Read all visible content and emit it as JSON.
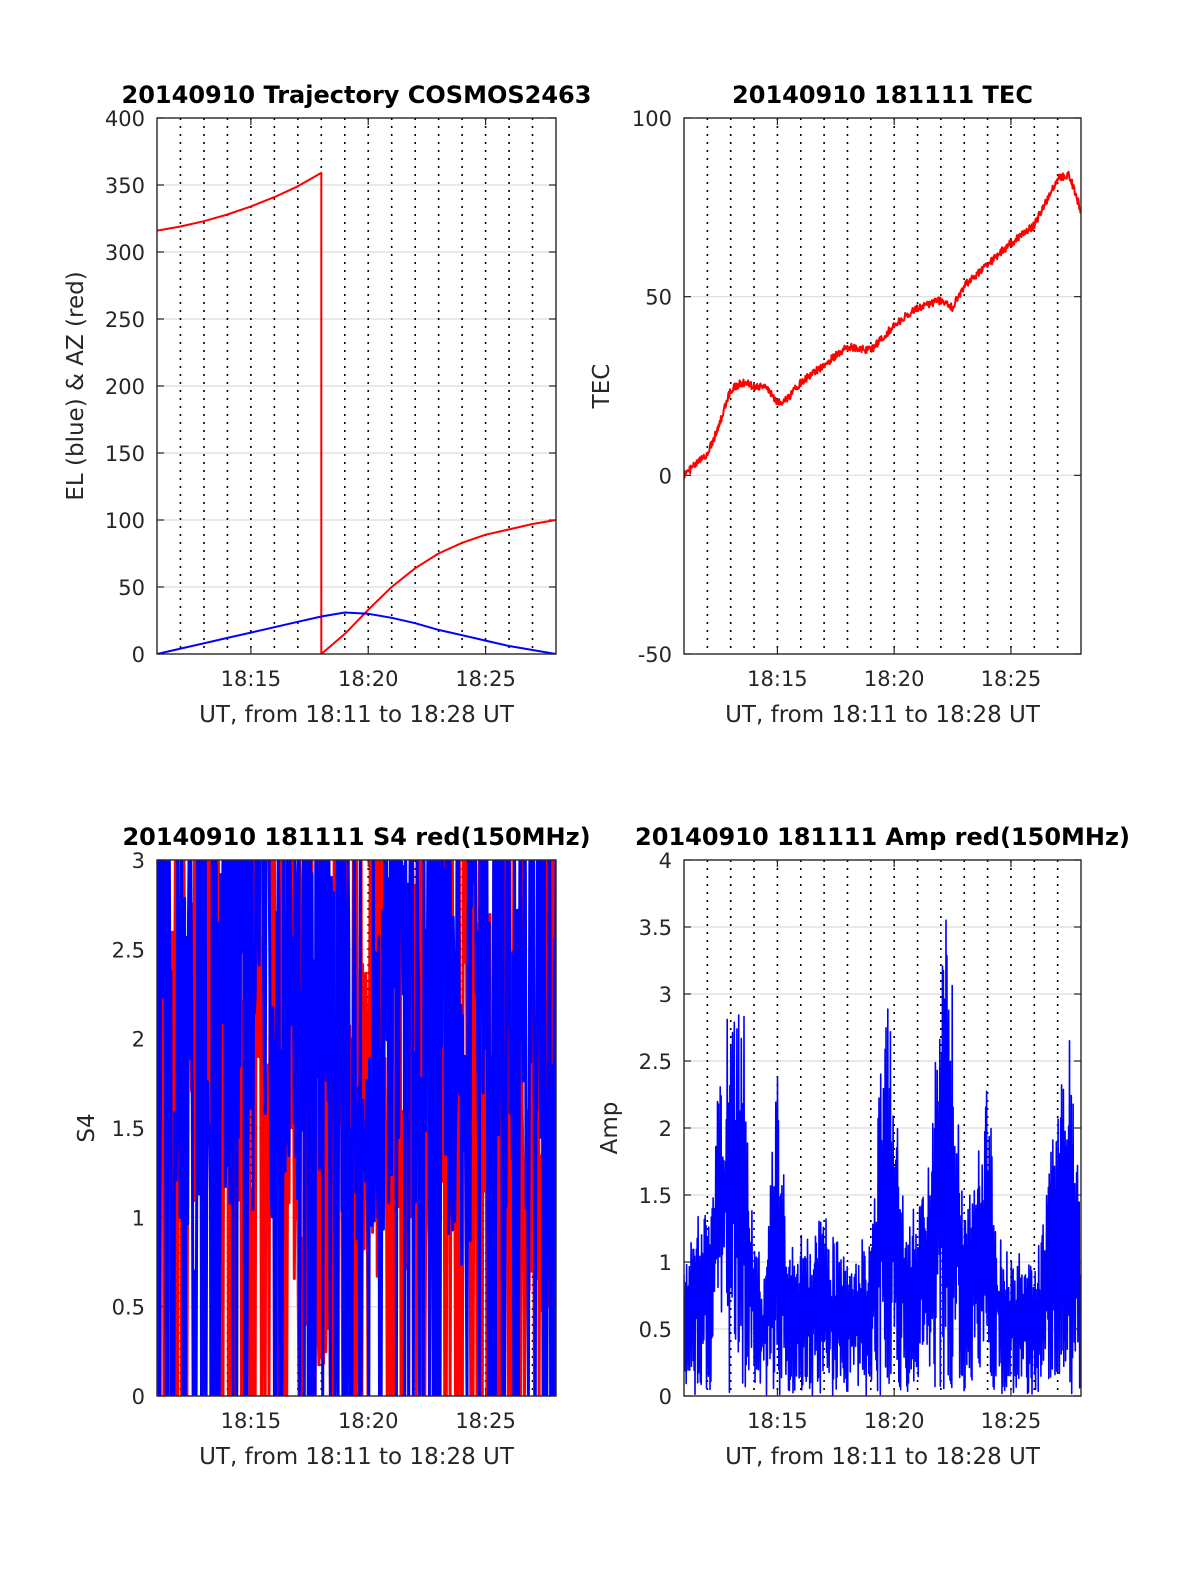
{
  "figure": {
    "background": "#ffffff"
  },
  "chart_data": [
    {
      "id": "trajectory",
      "type": "line",
      "title": "20140910 Trajectory COSMOS2463",
      "xlabel": "UT, from 18:11 to 18:28 UT",
      "ylabel": "EL (blue) & AZ (red)",
      "xlim": [
        "18:11",
        "18:28"
      ],
      "ylim": [
        0,
        400
      ],
      "x_tick_labels": [
        "18:15",
        "18:20",
        "18:25"
      ],
      "y_tick_labels": [
        "0",
        "50",
        "100",
        "150",
        "200",
        "250",
        "300",
        "350",
        "400"
      ],
      "grid": true,
      "series": [
        {
          "name": "AZ",
          "color": "#ff0000",
          "x": [
            "18:11",
            "18:12",
            "18:13",
            "18:14",
            "18:15",
            "18:16",
            "18:17",
            "18:18",
            "18:18",
            "18:19",
            "18:20",
            "18:21",
            "18:22",
            "18:23",
            "18:24",
            "18:25",
            "18:26",
            "18:27",
            "18:28"
          ],
          "y": [
            316,
            319,
            323,
            328,
            334,
            341,
            349,
            359,
            0,
            15,
            33,
            50,
            64,
            75,
            83,
            89,
            93,
            97,
            100
          ]
        },
        {
          "name": "EL",
          "color": "#0000ff",
          "x": [
            "18:11",
            "18:12",
            "18:13",
            "18:14",
            "18:15",
            "18:16",
            "18:17",
            "18:18",
            "18:19",
            "18:20",
            "18:21",
            "18:22",
            "18:23",
            "18:24",
            "18:25",
            "18:26",
            "18:27",
            "18:28"
          ],
          "y": [
            0,
            4,
            8,
            12,
            16,
            20,
            24,
            28,
            31,
            30,
            27,
            23,
            18,
            14,
            10,
            6,
            3,
            0
          ]
        }
      ]
    },
    {
      "id": "tec",
      "type": "line",
      "title": "20140910 181111 TEC",
      "xlabel": "UT, from 18:11 to 18:28 UT",
      "ylabel": "TEC",
      "xlim": [
        "18:11",
        "18:28"
      ],
      "ylim": [
        -50,
        100
      ],
      "x_tick_labels": [
        "18:15",
        "18:20",
        "18:25"
      ],
      "y_tick_labels": [
        "-50",
        "0",
        "50",
        "100"
      ],
      "grid": true,
      "series": [
        {
          "color": "#ff0000",
          "x": [
            "18:11",
            "18:11:30",
            "18:12",
            "18:12:30",
            "18:13",
            "18:13:30",
            "18:14",
            "18:14:30",
            "18:15",
            "18:15:30",
            "18:16",
            "18:17",
            "18:18",
            "18:19",
            "18:20",
            "18:21",
            "18:22",
            "18:22:30",
            "18:23",
            "18:24",
            "18:25",
            "18:26",
            "18:27",
            "18:27:30",
            "18:28"
          ],
          "y": [
            0,
            3,
            6,
            14,
            24,
            26,
            25,
            25,
            20,
            22,
            26,
            31,
            36,
            35,
            42,
            47,
            49,
            47,
            53,
            59,
            65,
            70,
            83,
            84,
            74
          ]
        }
      ]
    },
    {
      "id": "s4",
      "type": "line",
      "title": "20140910 181111 S4 red(150MHz)",
      "xlabel": "UT, from 18:11 to 18:28 UT",
      "ylabel": "S4",
      "xlim": [
        "18:11",
        "18:28"
      ],
      "ylim": [
        0,
        3
      ],
      "x_tick_labels": [
        "18:15",
        "18:20",
        "18:25"
      ],
      "y_tick_labels": [
        "0",
        "0.5",
        "1",
        "1.5",
        "2",
        "2.5",
        "3"
      ],
      "grid": true,
      "series": [
        {
          "color": "#ff0000",
          "x": [
            "18:11",
            "18:12",
            "18:13",
            "18:14",
            "18:15",
            "18:16",
            "18:17",
            "18:18",
            "18:19",
            "18:20",
            "18:21",
            "18:22",
            "18:23",
            "18:24",
            "18:25",
            "18:26",
            "18:27",
            "18:28"
          ],
          "y": [
            2.5,
            2.2,
            2.8,
            1.9,
            2.6,
            2.0,
            1.6,
            0.3,
            2.3,
            2.1,
            1.5,
            2.4,
            2.0,
            2.2,
            2.5,
            1.7,
            1.2,
            0.9
          ]
        },
        {
          "color": "#0000ff",
          "x": [
            "18:11",
            "18:12",
            "18:13",
            "18:14",
            "18:15",
            "18:16",
            "18:17",
            "18:18",
            "18:19",
            "18:20",
            "18:21",
            "18:22",
            "18:23",
            "18:24",
            "18:25",
            "18:26",
            "18:27",
            "18:28"
          ],
          "y": [
            3.0,
            2.7,
            1.3,
            2.9,
            3.0,
            2.8,
            2.6,
            2.9,
            2.4,
            1.6,
            2.9,
            2.7,
            3.0,
            1.8,
            2.9,
            3.0,
            2.6,
            3.0
          ]
        }
      ]
    },
    {
      "id": "amp",
      "type": "line",
      "title": "20140910 181111 Amp red(150MHz)",
      "xlabel": "UT, from 18:11 to 18:28 UT",
      "ylabel": "Amp",
      "xlim": [
        "18:11",
        "18:28"
      ],
      "ylim": [
        0,
        4
      ],
      "x_tick_labels": [
        "18:15",
        "18:20",
        "18:25"
      ],
      "y_tick_labels": [
        "0",
        "0.5",
        "1",
        "1.5",
        "2",
        "2.5",
        "3",
        "3.5",
        "4"
      ],
      "grid": true,
      "series": [
        {
          "color": "#0000ff",
          "x": [
            "18:11",
            "18:11:30",
            "18:12",
            "18:12:30",
            "18:13",
            "18:13:30",
            "18:14",
            "18:14:30",
            "18:15",
            "18:15:30",
            "18:16",
            "18:17",
            "18:18",
            "18:19",
            "18:19:45",
            "18:20:30",
            "18:21:30",
            "18:22:15",
            "18:23",
            "18:24",
            "18:24:30",
            "18:25",
            "18:26",
            "18:27",
            "18:27:30",
            "18:28"
          ],
          "y": [
            1.0,
            1.3,
            1.5,
            2.5,
            3.0,
            3.1,
            1.2,
            0.9,
            2.6,
            1.1,
            1.2,
            1.4,
            1.0,
            1.3,
            3.3,
            1.2,
            1.8,
            3.9,
            1.3,
            2.4,
            1.2,
            1.1,
            1.0,
            2.2,
            2.7,
            1.3
          ]
        }
      ]
    }
  ]
}
